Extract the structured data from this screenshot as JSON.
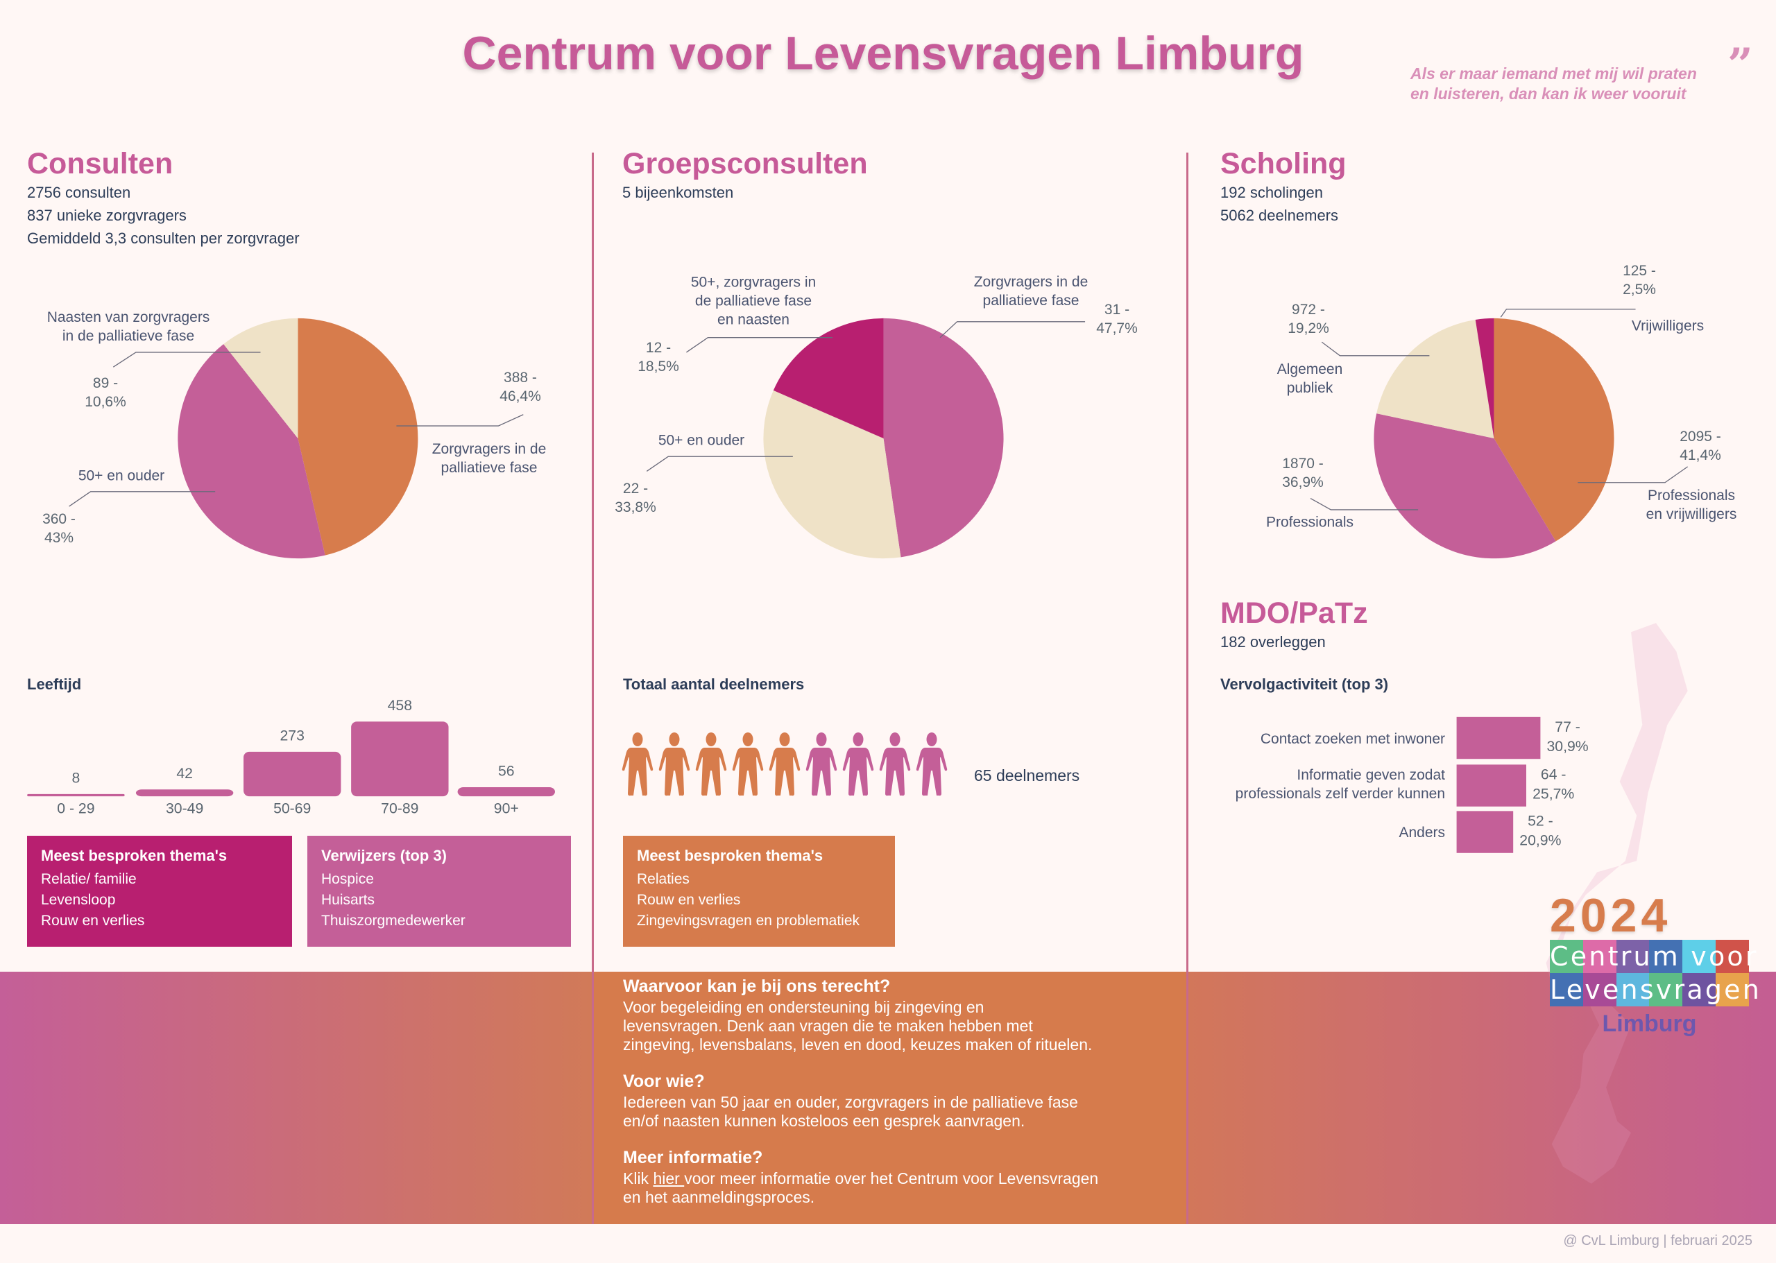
{
  "title": "Centrum voor Levensvragen Limburg",
  "quote": {
    "line1": "Als er maar iemand met mij wil praten",
    "line2": "en luisteren, dan kan ik weer vooruit",
    "icon": "quote-mark-icon"
  },
  "colors": {
    "pink": "#c45f98",
    "orange": "#d77c4c",
    "beige": "#efe2c7",
    "magenta": "#b81f70",
    "heading": "#c65a98",
    "text": "#2d3d58"
  },
  "consulten": {
    "heading": "Consulten",
    "stats": [
      "2756 consulten",
      "837 unieke zorgvragers",
      "Gemiddeld 3,3 consulten per zorgvrager"
    ],
    "pie": {
      "type": "pie",
      "slices": [
        {
          "label_lines": [
            "Zorgvragers in de",
            "palliatieve fase"
          ],
          "value": 388,
          "value_label": [
            "388 -",
            "46,4%"
          ],
          "percent": 46.4,
          "color": "#d77c4c"
        },
        {
          "label_lines": [
            "50+ en ouder"
          ],
          "value": 360,
          "value_label": [
            "360 -",
            "43%"
          ],
          "percent": 43,
          "color": "#c45f98"
        },
        {
          "label_lines": [
            "Naasten van zorgvragers",
            "in de palliatieve fase"
          ],
          "value": 89,
          "value_label": [
            "89 -",
            "10,6%"
          ],
          "percent": 10.6,
          "color": "#efe2c7"
        }
      ]
    },
    "age": {
      "title": "Leeftijd",
      "chart_type": "bar",
      "categories": [
        "0 - 29",
        "30-49",
        "50-69",
        "70-89",
        "90+"
      ],
      "values": [
        8,
        42,
        273,
        458,
        56
      ]
    },
    "themes": {
      "title": "Meest besproken thema's",
      "items": [
        "Relatie/ familie",
        "Levensloop",
        "Rouw en verlies"
      ]
    },
    "referrers": {
      "title": "Verwijzers (top 3)",
      "items": [
        "Hospice",
        "Huisarts",
        "Thuiszorgmedewerker"
      ]
    }
  },
  "groepsconsulten": {
    "heading": "Groepsconsulten",
    "stats": [
      "5 bijeenkomsten"
    ],
    "pie": {
      "type": "pie",
      "slices": [
        {
          "label_lines": [
            "Zorgvragers in de",
            "palliatieve fase"
          ],
          "value": 31,
          "value_label": [
            "31 -",
            "47,7%"
          ],
          "percent": 47.7,
          "color": "#c45f98"
        },
        {
          "label_lines": [
            "50+ en ouder"
          ],
          "value": 22,
          "value_label": [
            "22 -",
            "33,8%"
          ],
          "percent": 33.8,
          "color": "#efe2c7"
        },
        {
          "label_lines": [
            "50+, zorgvragers in",
            "de palliatieve fase",
            "en naasten"
          ],
          "value": 12,
          "value_label": [
            "12 -",
            "18,5%"
          ],
          "percent": 18.5,
          "color": "#b81f70"
        }
      ]
    },
    "participants": {
      "title": "Totaal aantal deelnemers",
      "label": "65 deelnemers",
      "icons_orange": 5,
      "icons_pink": 4,
      "icon": "person-icon"
    },
    "themes": {
      "title": "Meest besproken thema's",
      "items": [
        "Relaties",
        "Rouw en verlies",
        "Zingevingsvragen en problematiek"
      ]
    }
  },
  "scholing": {
    "heading": "Scholing",
    "stats": [
      "192 scholingen",
      "5062 deelnemers"
    ],
    "pie": {
      "type": "pie",
      "slices": [
        {
          "label_lines": [
            "Professionals",
            "en vrijwilligers"
          ],
          "value": 2095,
          "value_label": [
            "2095 -",
            "41,4%"
          ],
          "percent": 41.4,
          "color": "#d77c4c"
        },
        {
          "label_lines": [
            "Professionals"
          ],
          "value": 1870,
          "value_label": [
            "1870 -",
            "36,9%"
          ],
          "percent": 36.9,
          "color": "#c45f98"
        },
        {
          "label_lines": [
            "Algemeen",
            "publiek"
          ],
          "value": 972,
          "value_label": [
            "972 -",
            "19,2%"
          ],
          "percent": 19.2,
          "color": "#efe2c7"
        },
        {
          "label_lines": [
            "Vrijwilligers"
          ],
          "value": 125,
          "value_label": [
            "125 -",
            "2,5%"
          ],
          "percent": 2.5,
          "color": "#b81f70"
        }
      ]
    }
  },
  "mdo": {
    "heading": "MDO/PaTz",
    "stats": [
      "182 overleggen"
    ],
    "followup": {
      "title": "Vervolgactiviteit (top 3)",
      "chart_type": "bar-horizontal",
      "rows": [
        {
          "label_lines": [
            "Contact zoeken met inwoner"
          ],
          "value": 77,
          "value_label": [
            "77 -",
            "30,9%"
          ]
        },
        {
          "label_lines": [
            "Informatie geven zodat",
            "professionals zelf verder kunnen"
          ],
          "value": 64,
          "value_label": [
            "64 -",
            "25,7%"
          ]
        },
        {
          "label_lines": [
            "Anders"
          ],
          "value": 52,
          "value_label": [
            "52 -",
            "20,9%"
          ]
        }
      ]
    }
  },
  "info": {
    "sections": [
      {
        "title": "Waarvoor kan je bij ons terecht?",
        "lines": [
          "Voor begeleiding en ondersteuning bij zingeving en",
          "levensvragen. Denk aan vragen die te maken hebben met",
          "zingeving, levensbalans, leven en dood, keuzes maken of rituelen."
        ]
      },
      {
        "title": "Voor wie?",
        "lines": [
          "Iedereen van 50 jaar en ouder, zorgvragers in de palliatieve fase",
          "en/of naasten kunnen kosteloos een gesprek aanvragen."
        ]
      },
      {
        "title": "Meer informatie?",
        "pre": "Klik ",
        "link": "hier ",
        "post": "voor meer informatie over het Centrum voor Levensvragen",
        "line2": "en het aanmeldingsproces."
      }
    ]
  },
  "logo": {
    "year": "2024",
    "row1": "Centrum voor",
    "row2": "Levensvragen",
    "sub": "Limburg",
    "row1_colors": [
      "#5dbd86",
      "#dd6ba8",
      "#7d62a8",
      "#4471b3",
      "#5ecfe8",
      "#d0534a"
    ],
    "row2_colors": [
      "#4470b3",
      "#a84a96",
      "#5db7de",
      "#5dbd86",
      "#6e53a0",
      "#e8a34c"
    ]
  },
  "footer": "@ CvL Limburg | februari 2025"
}
